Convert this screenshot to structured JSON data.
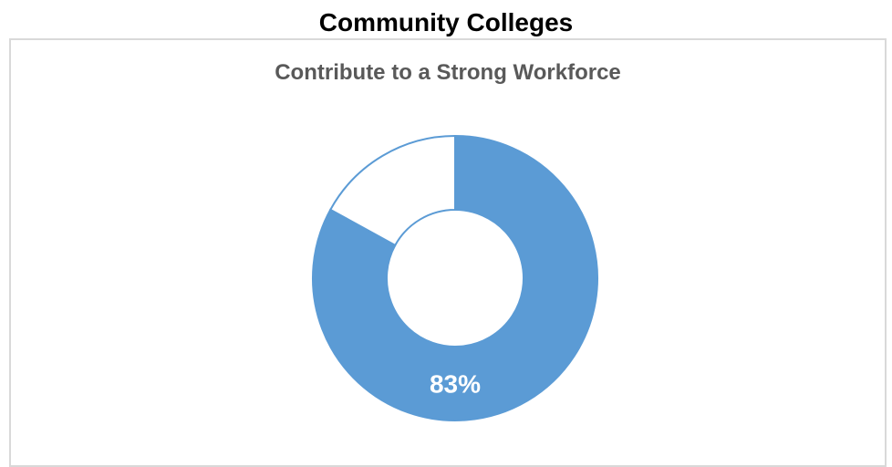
{
  "page_title": "Community Colleges",
  "colors": {
    "filled": "#5b9bd5",
    "remainder": "#ffffff",
    "outline": "#5b9bd5",
    "label": "#ffffff"
  },
  "chart_data": {
    "type": "pie",
    "variant": "donut",
    "title": "Contribute to a Strong Workforce",
    "slices": [
      {
        "value": 83,
        "label": "83%"
      },
      {
        "value": 17,
        "label": ""
      }
    ],
    "legend": "none"
  }
}
